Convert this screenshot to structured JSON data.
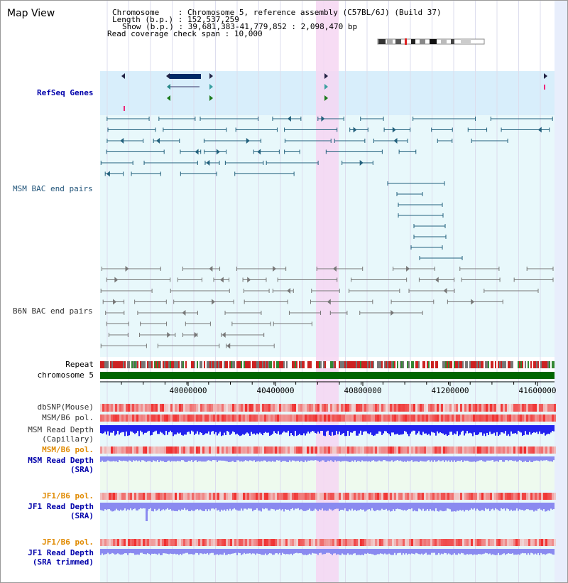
{
  "app": {
    "title": "Map View"
  },
  "header": {
    "chromosome_key": "Chromosome",
    "chromosome_val": "Chromosome 5, reference assembly (C57BL/6J) (Build 37)",
    "length_key": "Length (b.p.)",
    "length_val": "152,537,259",
    "show_key": "Show (b.p.)",
    "show_val": "39,681,383-41,779,852 : 2,098,470 bp",
    "span_key": "Read coverage check span",
    "span_val": "10,000"
  },
  "tracks": {
    "refseq": "RefSeq Genes",
    "msm_bac": "MSM BAC end pairs",
    "b6n_bac": "B6N BAC end pairs",
    "repeat": "Repeat",
    "chromosome": "chromosome 5",
    "dbsnp": "dbSNP(Mouse)",
    "msm_b6_pol": "MSM/B6 pol.",
    "msm_depth_cap_1": "MSM Read Depth",
    "msm_depth_cap_2": "(Capillary)",
    "msm_b6_pol_2": "MSM/B6 pol.",
    "msm_depth_sra_1": "MSM Read Depth",
    "msm_depth_sra_2": "(SRA)",
    "jf1_pol_1": "JF1/B6 pol.",
    "jf1_depth_1": "JF1 Read Depth",
    "jf1_depth_1b": "(SRA)",
    "jf1_pol_2": "JF1/B6 pol.",
    "jf1_depth_2": "JF1 Read Depth",
    "jf1_depth_2b": "(SRA trimmed)"
  },
  "axis": {
    "ticks": [
      "40000000",
      "40400000",
      "40800000",
      "41200000",
      "41600000"
    ]
  },
  "colors": {
    "refseq_bg": "#d8eefb",
    "bac_bg": "#e8f8fb",
    "highlight": "#f6d6f2",
    "gene": "#002a66",
    "msm_line": "#22607c",
    "b6n_line": "#777777",
    "chrom": "#006600",
    "depth_cap": "#2222ee",
    "depth_sra": "#8a8af0"
  }
}
